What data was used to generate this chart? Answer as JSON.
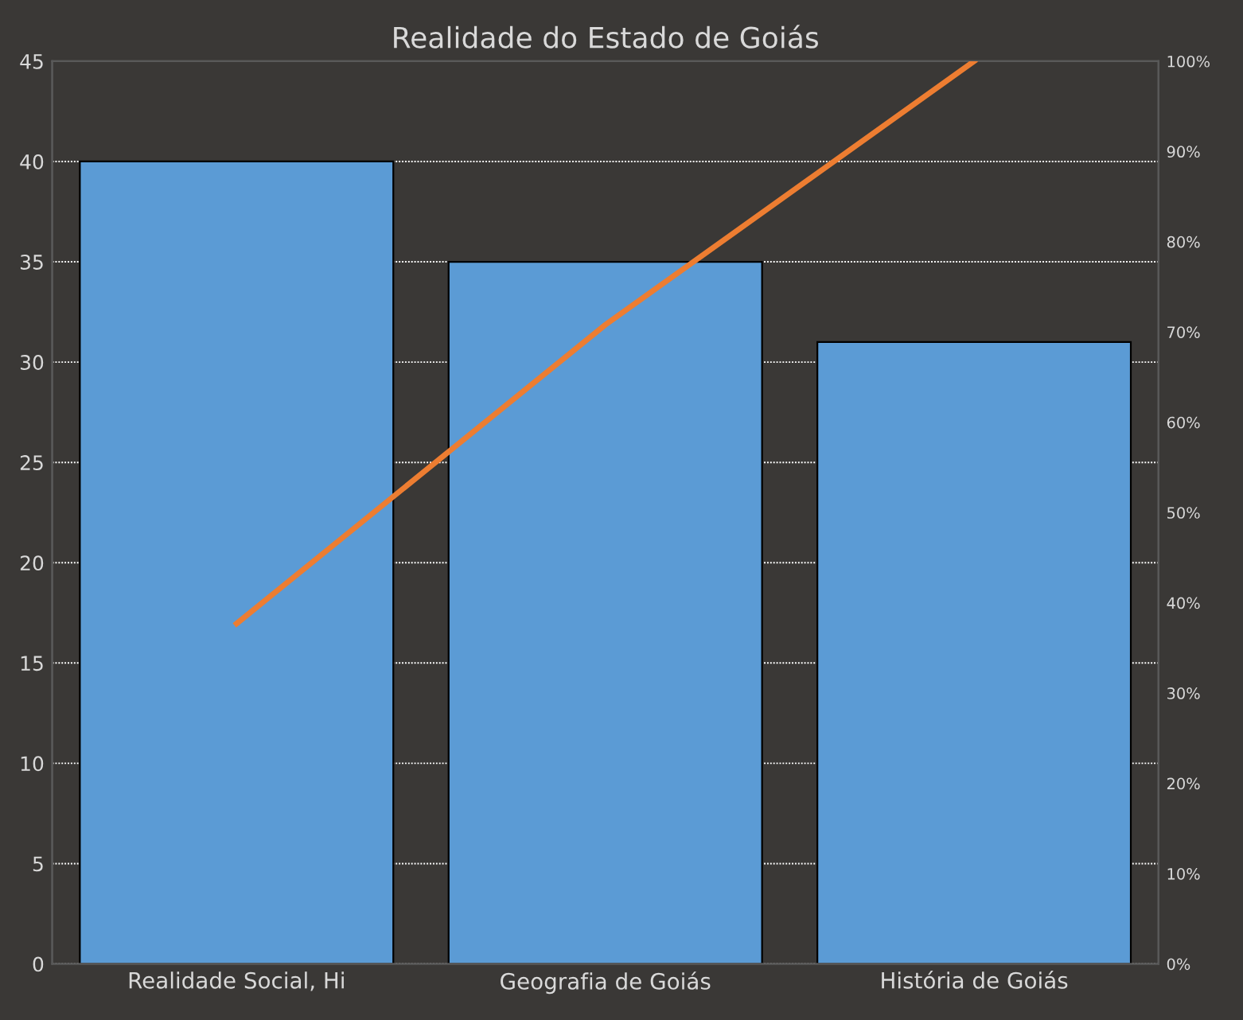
{
  "chart_data": {
    "type": "bar",
    "title": "Realidade do Estado de Goiás",
    "categories": [
      "Realidade Social, Hi",
      "Geografia de Goiás",
      "História de Goiás"
    ],
    "series": [
      {
        "color": "#5b9bd5",
        "values": [
          40,
          35,
          31
        ]
      },
      {
        "type": "line",
        "color": "#ed7d31",
        "axis": "y2",
        "values": [
          37.7,
          70.8,
          100
        ]
      }
    ],
    "ylim": [
      0,
      45
    ],
    "yticks": [
      0,
      5,
      10,
      15,
      20,
      25,
      30,
      35,
      40,
      45
    ],
    "y2lim": [
      0,
      100
    ],
    "y2ticks": [
      {
        "value": 0,
        "label": "0%"
      },
      {
        "value": 10,
        "label": "10%"
      },
      {
        "value": 20,
        "label": "20%"
      },
      {
        "value": 30,
        "label": "30%"
      },
      {
        "value": 40,
        "label": "40%"
      },
      {
        "value": 50,
        "label": "50%"
      },
      {
        "value": 60,
        "label": "60%"
      },
      {
        "value": 70,
        "label": "70%"
      },
      {
        "value": 80,
        "label": "80%"
      },
      {
        "value": 90,
        "label": "90%"
      },
      {
        "value": 100,
        "label": "100%"
      }
    ],
    "grid": "y",
    "marker": "none",
    "line_style": "solid"
  }
}
